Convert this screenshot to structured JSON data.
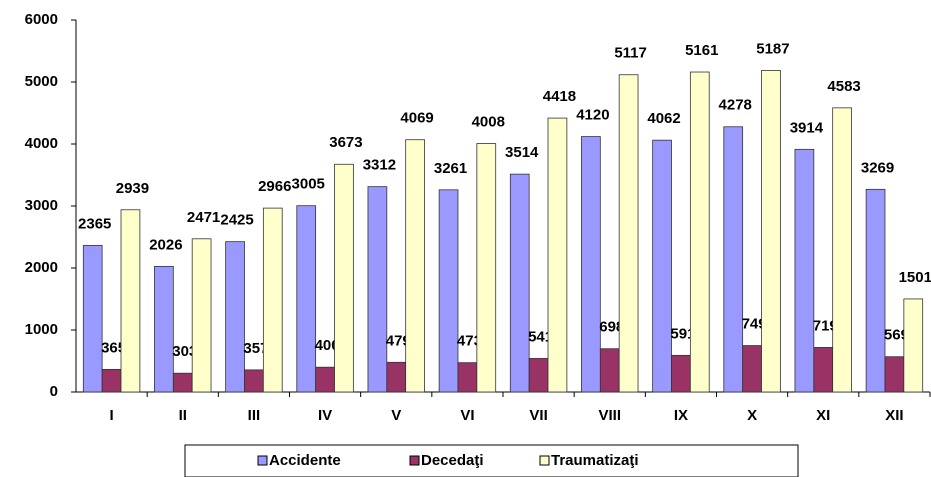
{
  "chart_data": {
    "type": "bar",
    "categories": [
      "I",
      "II",
      "III",
      "IV",
      "V",
      "VI",
      "VII",
      "VIII",
      "IX",
      "X",
      "XI",
      "XII"
    ],
    "series": [
      {
        "name": "Accidente",
        "color": "#9999ff",
        "values": [
          2365,
          2026,
          2425,
          3005,
          3312,
          3261,
          3514,
          4120,
          4062,
          4278,
          3914,
          3269
        ]
      },
      {
        "name": "Decedaţi",
        "color": "#993366",
        "values": [
          365,
          303,
          357,
          400,
          479,
          473,
          541,
          698,
          591,
          749,
          719,
          569
        ]
      },
      {
        "name": "Traumatizaţi",
        "color": "#ffffcc",
        "values": [
          2939,
          2471,
          2966,
          3673,
          4069,
          4008,
          4418,
          5117,
          5161,
          5187,
          4583,
          1501
        ]
      }
    ],
    "ylim": [
      0,
      6000
    ],
    "yticks": [
      0,
      1000,
      2000,
      3000,
      4000,
      5000,
      6000
    ],
    "grid": false,
    "legend": "bottom"
  }
}
